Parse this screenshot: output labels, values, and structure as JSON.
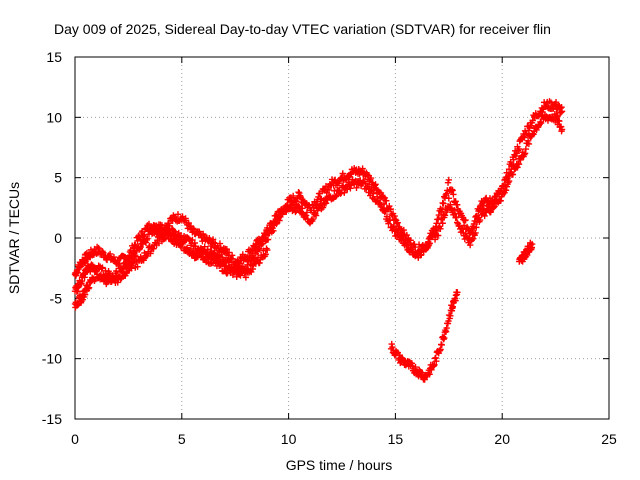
{
  "chart_data": {
    "type": "scatter",
    "title": "Day 009 of 2025, Sidereal Day-to-day VTEC variation (SDTVAR) for receiver flin",
    "xlabel": "GPS time / hours",
    "ylabel": "SDTVAR / TECUs",
    "xlim": [
      0,
      25
    ],
    "ylim": [
      -15,
      15
    ],
    "xticks": [
      0,
      5,
      10,
      15,
      20,
      25
    ],
    "yticks": [
      -15,
      -10,
      -5,
      0,
      5,
      10,
      15
    ],
    "xtick_labels": [
      "0",
      "5",
      "10",
      "15",
      "20",
      "25"
    ],
    "ytick_labels": [
      "-15",
      "-10",
      "-5",
      "0",
      "5",
      "10",
      "15"
    ],
    "grid": true,
    "marker": "+",
    "color": "#ff0000",
    "series": [
      {
        "x": [
          0.0,
          0.3,
          0.6,
          1.0,
          1.5,
          2.0,
          2.5,
          3.0,
          3.5,
          4.0,
          4.5,
          5.0,
          5.5,
          6.0,
          6.5,
          7.0,
          7.5,
          8.0,
          8.5,
          9.0,
          9.5,
          10.0,
          10.5,
          11.0,
          11.5,
          12.0,
          12.5,
          13.0,
          13.5,
          14.0,
          14.5,
          15.0,
          15.5,
          16.0,
          16.5,
          17.0,
          17.5,
          18.0,
          18.5,
          19.0,
          19.5,
          20.0,
          20.5,
          21.0,
          21.5,
          22.0,
          22.5,
          22.8
        ],
        "y": [
          -3.0,
          -2.0,
          -1.5,
          -1.0,
          -1.5,
          -2.0,
          -1.5,
          0.0,
          1.0,
          0.5,
          1.5,
          1.8,
          0.5,
          0.0,
          -0.5,
          -1.0,
          -2.0,
          -1.5,
          -0.5,
          0.0,
          1.5,
          3.0,
          3.5,
          2.5,
          3.5,
          4.5,
          5.0,
          5.5,
          5.5,
          4.5,
          3.0,
          1.5,
          0.0,
          -1.0,
          -0.5,
          1.5,
          4.5,
          2.0,
          0.5,
          3.0,
          3.0,
          4.0,
          6.5,
          8.5,
          10.0,
          11.0,
          11.0,
          10.5
        ]
      },
      {
        "x": [
          0.0,
          0.3,
          0.6,
          1.0,
          1.5,
          2.0,
          2.5,
          3.0,
          3.5,
          4.0,
          4.5,
          5.0,
          5.5,
          6.0,
          6.5,
          7.0,
          7.5,
          8.0,
          8.5,
          9.0,
          9.5,
          10.0,
          10.5,
          11.0,
          11.5,
          12.0,
          12.5,
          13.0,
          13.5,
          14.0,
          14.5,
          15.0,
          15.5,
          16.0,
          16.5,
          17.0,
          17.5,
          18.0,
          18.5,
          19.0,
          19.5,
          20.0,
          20.5,
          21.0,
          21.5,
          22.0,
          22.5,
          22.8
        ],
        "y": [
          -4.5,
          -3.5,
          -2.5,
          -2.5,
          -3.0,
          -3.5,
          -2.5,
          -2.0,
          -1.0,
          0.0,
          0.5,
          0.0,
          -0.5,
          -1.5,
          -2.0,
          -2.5,
          -3.0,
          -2.5,
          -1.0,
          0.5,
          2.0,
          2.5,
          2.5,
          1.5,
          2.5,
          3.5,
          4.0,
          4.5,
          4.5,
          3.5,
          2.0,
          0.5,
          -0.5,
          -1.5,
          -0.5,
          0.5,
          3.0,
          1.0,
          -0.5,
          2.0,
          2.5,
          3.5,
          5.5,
          7.0,
          9.0,
          10.0,
          10.0,
          9.0
        ]
      },
      {
        "x": [
          0.0,
          0.3,
          0.6,
          1.0,
          1.5,
          2.0,
          2.5,
          3.0,
          3.5,
          4.0,
          4.5,
          5.0,
          5.5,
          6.0,
          6.5,
          7.0,
          7.5,
          8.0,
          8.5,
          9.0
        ],
        "y": [
          -5.5,
          -5.0,
          -4.0,
          -3.0,
          -3.5,
          -3.0,
          -2.0,
          -1.0,
          0.5,
          1.0,
          0.0,
          -0.5,
          -1.5,
          -1.0,
          -1.5,
          -2.0,
          -2.5,
          -3.0,
          -2.0,
          -1.0
        ]
      },
      {
        "x": [
          14.8,
          15.2,
          15.6,
          16.0,
          16.4,
          16.8,
          17.2,
          17.6,
          17.9
        ],
        "y": [
          -9.0,
          -10.0,
          -10.5,
          -11.0,
          -11.5,
          -10.5,
          -8.5,
          -6.0,
          -4.5
        ]
      },
      {
        "x": [
          20.8,
          21.0,
          21.2,
          21.4
        ],
        "y": [
          -2.0,
          -1.5,
          -1.0,
          -0.5
        ]
      }
    ]
  }
}
